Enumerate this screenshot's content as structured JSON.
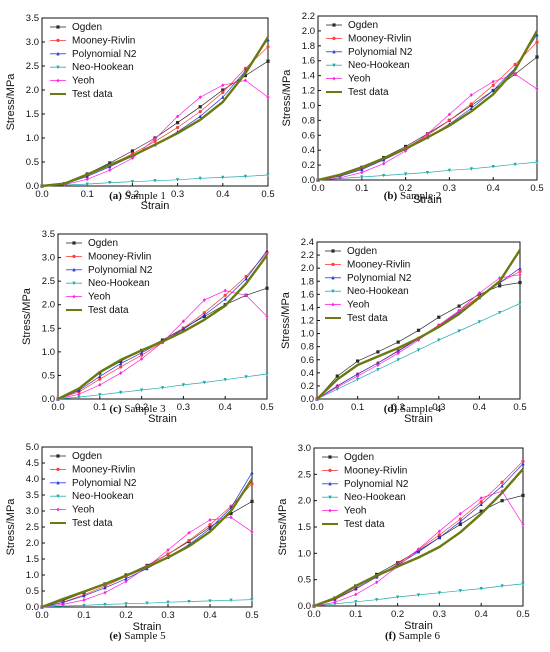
{
  "figure": {
    "captions": [
      {
        "label": "(a)",
        "text": " Sample 1"
      },
      {
        "label": "(b)",
        "text": " Sample 2"
      },
      {
        "label": "(c)",
        "text": " Sample 3"
      },
      {
        "label": "(d)",
        "text": " Sample 4"
      },
      {
        "label": "(e)",
        "text": " Sample 5"
      },
      {
        "label": "(f)",
        "text": " Sample 6"
      }
    ]
  },
  "series_styles": [
    {
      "name": "Ogden",
      "color": "#2b2b2b",
      "marker": "square"
    },
    {
      "name": "Mooney-Rivlin",
      "color": "#ff3b3b",
      "marker": "circle"
    },
    {
      "name": "Polynomial N2",
      "color": "#2233dd",
      "marker": "triangle"
    },
    {
      "name": "Neo-Hookean",
      "color": "#22aaaa",
      "marker": "triangle-down"
    },
    {
      "name": "Yeoh",
      "color": "#ff22dd",
      "marker": "diamond"
    },
    {
      "name": "Test data",
      "color": "#6b7a10",
      "marker": "none"
    }
  ],
  "chart_data": [
    {
      "type": "line",
      "xlabel": "Strain",
      "ylabel": "Stress/MPa",
      "xlim": [
        0,
        0.5
      ],
      "ylim": [
        0,
        3.5
      ],
      "xticks": [
        "0.0",
        "0.1",
        "0.2",
        "0.3",
        "0.4",
        "0.5"
      ],
      "yticks": [
        "0.0",
        "0.5",
        "1.0",
        "1.5",
        "2.0",
        "2.5",
        "3.0",
        "3.5"
      ],
      "legend_position": "top-left",
      "x": [
        0,
        0.05,
        0.1,
        0.15,
        0.2,
        0.25,
        0.3,
        0.35,
        0.4,
        0.45,
        0.5
      ],
      "series": [
        {
          "name": "Ogden",
          "values": [
            0,
            0.05,
            0.25,
            0.48,
            0.73,
            1.0,
            1.32,
            1.65,
            2.0,
            2.3,
            2.6
          ]
        },
        {
          "name": "Mooney-Rivlin",
          "values": [
            0,
            0.05,
            0.22,
            0.43,
            0.67,
            0.93,
            1.22,
            1.55,
            1.95,
            2.45,
            2.9
          ]
        },
        {
          "name": "Polynomial N2",
          "values": [
            0,
            0.04,
            0.2,
            0.4,
            0.62,
            0.86,
            1.13,
            1.45,
            1.85,
            2.4,
            3.05
          ]
        },
        {
          "name": "Neo-Hookean",
          "values": [
            0,
            0.02,
            0.04,
            0.07,
            0.09,
            0.11,
            0.13,
            0.16,
            0.18,
            0.2,
            0.23
          ]
        },
        {
          "name": "Yeoh",
          "values": [
            0,
            0.03,
            0.14,
            0.33,
            0.58,
            0.98,
            1.45,
            1.85,
            2.1,
            2.2,
            1.85
          ]
        },
        {
          "name": "Test data",
          "values": [
            0,
            0.05,
            0.24,
            0.44,
            0.63,
            0.86,
            1.1,
            1.38,
            1.75,
            2.35,
            3.1
          ]
        }
      ]
    },
    {
      "type": "line",
      "xlabel": "Strain",
      "ylabel": "Stress/MPa",
      "xlim": [
        0,
        0.5
      ],
      "ylim": [
        0,
        2.2
      ],
      "xticks": [
        "0.0",
        "0.1",
        "0.2",
        "0.3",
        "0.4",
        "0.5"
      ],
      "yticks": [
        "0.0",
        "0.2",
        "0.4",
        "0.6",
        "0.8",
        "1.0",
        "1.2",
        "1.4",
        "1.6",
        "1.8",
        "2.0",
        "2.2"
      ],
      "legend_position": "top-left",
      "x": [
        0,
        0.05,
        0.1,
        0.15,
        0.2,
        0.25,
        0.3,
        0.35,
        0.4,
        0.45,
        0.5
      ],
      "series": [
        {
          "name": "Ogden",
          "values": [
            0,
            0.06,
            0.17,
            0.3,
            0.45,
            0.62,
            0.8,
            1.0,
            1.2,
            1.42,
            1.65
          ]
        },
        {
          "name": "Mooney-Rivlin",
          "values": [
            0,
            0.05,
            0.15,
            0.28,
            0.43,
            0.6,
            0.8,
            1.02,
            1.27,
            1.55,
            1.85
          ]
        },
        {
          "name": "Polynomial N2",
          "values": [
            0,
            0.05,
            0.14,
            0.27,
            0.41,
            0.57,
            0.75,
            0.96,
            1.2,
            1.5,
            1.95
          ]
        },
        {
          "name": "Neo-Hookean",
          "values": [
            0,
            0.02,
            0.04,
            0.06,
            0.08,
            0.1,
            0.13,
            0.15,
            0.18,
            0.21,
            0.24
          ]
        },
        {
          "name": "Yeoh",
          "values": [
            0,
            0.03,
            0.1,
            0.22,
            0.39,
            0.62,
            0.88,
            1.14,
            1.32,
            1.42,
            1.22
          ]
        },
        {
          "name": "Test data",
          "values": [
            0,
            0.07,
            0.17,
            0.29,
            0.42,
            0.57,
            0.73,
            0.92,
            1.15,
            1.48,
            2.0
          ]
        }
      ]
    },
    {
      "type": "line",
      "xlabel": "Strain",
      "ylabel": "Stress/MPa",
      "xlim": [
        0,
        0.5
      ],
      "ylim": [
        0,
        3.5
      ],
      "xticks": [
        "0.0",
        "0.1",
        "0.2",
        "0.3",
        "0.4",
        "0.5"
      ],
      "yticks": [
        "0.0",
        "0.5",
        "1.0",
        "1.5",
        "2.0",
        "2.5",
        "3.0",
        "3.5"
      ],
      "legend_position": "top-left",
      "x": [
        0,
        0.05,
        0.1,
        0.15,
        0.2,
        0.25,
        0.3,
        0.35,
        0.4,
        0.45,
        0.5
      ],
      "series": [
        {
          "name": "Ogden",
          "values": [
            0,
            0.2,
            0.55,
            0.8,
            1.03,
            1.25,
            1.5,
            1.75,
            2.0,
            2.2,
            2.35
          ]
        },
        {
          "name": "Mooney-Rivlin",
          "values": [
            0,
            0.15,
            0.42,
            0.68,
            0.93,
            1.2,
            1.5,
            1.83,
            2.2,
            2.6,
            3.1
          ]
        },
        {
          "name": "Polynomial N2",
          "values": [
            0,
            0.18,
            0.48,
            0.75,
            0.98,
            1.22,
            1.48,
            1.78,
            2.12,
            2.55,
            3.15
          ]
        },
        {
          "name": "Neo-Hookean",
          "values": [
            0,
            0.04,
            0.09,
            0.14,
            0.19,
            0.24,
            0.3,
            0.35,
            0.41,
            0.47,
            0.53
          ]
        },
        {
          "name": "Yeoh",
          "values": [
            0,
            0.1,
            0.3,
            0.55,
            0.85,
            1.2,
            1.65,
            2.1,
            2.3,
            2.2,
            1.75
          ]
        },
        {
          "name": "Test data",
          "values": [
            0,
            0.22,
            0.57,
            0.83,
            1.03,
            1.22,
            1.43,
            1.68,
            1.98,
            2.45,
            3.05
          ]
        }
      ]
    },
    {
      "type": "line",
      "xlabel": "Strain",
      "ylabel": "Stress/MPa",
      "xlim": [
        0,
        0.5
      ],
      "ylim": [
        0,
        2.4
      ],
      "xticks": [
        "0.0",
        "0.1",
        "0.2",
        "0.3",
        "0.4",
        "0.5"
      ],
      "yticks": [
        "0.0",
        "0.2",
        "0.4",
        "0.6",
        "0.8",
        "1.0",
        "1.2",
        "1.4",
        "1.6",
        "1.8",
        "2.0",
        "2.2",
        "2.4"
      ],
      "legend_position": "top-left",
      "x": [
        0,
        0.05,
        0.1,
        0.15,
        0.2,
        0.25,
        0.3,
        0.35,
        0.4,
        0.45,
        0.5
      ],
      "series": [
        {
          "name": "Ogden",
          "values": [
            0,
            0.35,
            0.58,
            0.72,
            0.87,
            1.05,
            1.25,
            1.42,
            1.6,
            1.73,
            1.78
          ]
        },
        {
          "name": "Mooney-Rivlin",
          "values": [
            0,
            0.2,
            0.38,
            0.55,
            0.74,
            0.93,
            1.13,
            1.35,
            1.57,
            1.78,
            1.95
          ]
        },
        {
          "name": "Polynomial N2",
          "values": [
            0,
            0.2,
            0.38,
            0.55,
            0.73,
            0.92,
            1.12,
            1.33,
            1.55,
            1.78,
            2.0
          ]
        },
        {
          "name": "Neo-Hookean",
          "values": [
            0,
            0.15,
            0.3,
            0.45,
            0.6,
            0.75,
            0.9,
            1.04,
            1.18,
            1.32,
            1.46
          ]
        },
        {
          "name": "Yeoh",
          "values": [
            0,
            0.18,
            0.35,
            0.52,
            0.7,
            0.9,
            1.12,
            1.35,
            1.62,
            1.85,
            1.9
          ]
        },
        {
          "name": "Test data",
          "values": [
            0,
            0.3,
            0.52,
            0.65,
            0.78,
            0.93,
            1.1,
            1.3,
            1.55,
            1.8,
            2.28
          ]
        }
      ]
    },
    {
      "type": "line",
      "xlabel": "Strain",
      "ylabel": "Stress/MPa",
      "xlim": [
        0,
        0.5
      ],
      "ylim": [
        0,
        5.0
      ],
      "xticks": [
        "0.0",
        "0.1",
        "0.2",
        "0.3",
        "0.4",
        "0.5"
      ],
      "yticks": [
        "0.0",
        "0.5",
        "1.0",
        "1.5",
        "2.0",
        "2.5",
        "3.0",
        "3.5",
        "4.0",
        "4.5",
        "5.0"
      ],
      "legend_position": "top-left",
      "x": [
        0,
        0.05,
        0.1,
        0.15,
        0.2,
        0.25,
        0.3,
        0.35,
        0.4,
        0.45,
        0.5
      ],
      "series": [
        {
          "name": "Ogden",
          "values": [
            0,
            0.2,
            0.45,
            0.72,
            1.0,
            1.3,
            1.65,
            2.05,
            2.5,
            2.92,
            3.3
          ]
        },
        {
          "name": "Mooney-Rivlin",
          "values": [
            0,
            0.15,
            0.38,
            0.65,
            0.95,
            1.28,
            1.65,
            2.08,
            2.57,
            3.15,
            3.85
          ]
        },
        {
          "name": "Polynomial N2",
          "values": [
            0,
            0.14,
            0.35,
            0.6,
            0.88,
            1.2,
            1.55,
            1.95,
            2.45,
            3.1,
            4.2
          ]
        },
        {
          "name": "Neo-Hookean",
          "values": [
            0,
            0.03,
            0.05,
            0.08,
            0.1,
            0.12,
            0.15,
            0.17,
            0.19,
            0.21,
            0.23
          ]
        },
        {
          "name": "Yeoh",
          "values": [
            0,
            0.08,
            0.22,
            0.45,
            0.8,
            1.25,
            1.78,
            2.32,
            2.72,
            2.8,
            2.35
          ]
        },
        {
          "name": "Test data",
          "values": [
            0,
            0.25,
            0.48,
            0.72,
            0.98,
            1.25,
            1.55,
            1.9,
            2.35,
            3.0,
            4.0
          ]
        }
      ]
    },
    {
      "type": "line",
      "xlabel": "Strain",
      "ylabel": "Stress/MPa",
      "xlim": [
        0,
        0.5
      ],
      "ylim": [
        0,
        3.0
      ],
      "xticks": [
        "0.0",
        "0.1",
        "0.2",
        "0.3",
        "0.4",
        "0.5"
      ],
      "yticks": [
        "0.0",
        "0.5",
        "1.0",
        "1.5",
        "2.0",
        "2.5",
        "3.0"
      ],
      "legend_position": "top-left",
      "x": [
        0,
        0.05,
        0.1,
        0.15,
        0.2,
        0.25,
        0.3,
        0.35,
        0.4,
        0.45,
        0.5
      ],
      "series": [
        {
          "name": "Ogden",
          "values": [
            0,
            0.15,
            0.38,
            0.6,
            0.82,
            1.05,
            1.3,
            1.55,
            1.8,
            2.0,
            2.1
          ]
        },
        {
          "name": "Mooney-Rivlin",
          "values": [
            0,
            0.12,
            0.32,
            0.55,
            0.8,
            1.07,
            1.35,
            1.65,
            1.98,
            2.35,
            2.75
          ]
        },
        {
          "name": "Polynomial N2",
          "values": [
            0,
            0.13,
            0.33,
            0.55,
            0.78,
            1.03,
            1.3,
            1.6,
            1.93,
            2.28,
            2.7
          ]
        },
        {
          "name": "Neo-Hookean",
          "values": [
            0,
            0.04,
            0.08,
            0.12,
            0.17,
            0.21,
            0.25,
            0.29,
            0.33,
            0.38,
            0.42
          ]
        },
        {
          "name": "Yeoh",
          "values": [
            0,
            0.07,
            0.22,
            0.45,
            0.75,
            1.08,
            1.42,
            1.75,
            2.05,
            2.18,
            1.55
          ]
        },
        {
          "name": "Test data",
          "values": [
            0,
            0.15,
            0.38,
            0.58,
            0.75,
            0.92,
            1.12,
            1.4,
            1.75,
            2.15,
            2.6
          ]
        }
      ]
    }
  ]
}
